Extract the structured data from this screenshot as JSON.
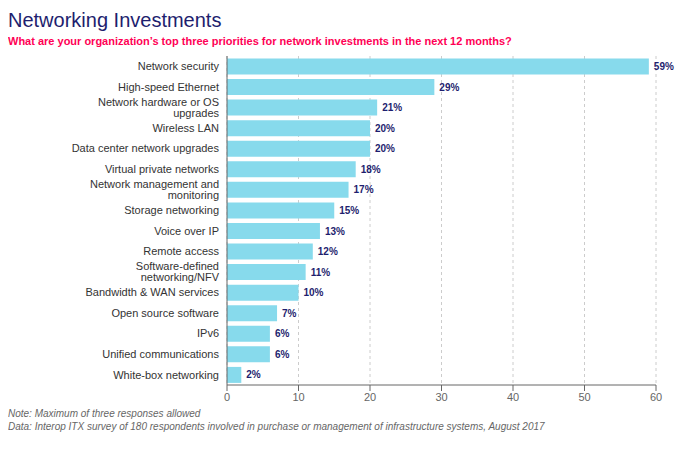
{
  "chart_data": {
    "type": "bar",
    "orientation": "horizontal",
    "title": "Networking Investments",
    "subtitle": "What are your organization’s top three priorities for network investments in the next 12 months?",
    "annotations": [
      "Note: Maximum of three responses allowed",
      "Data: Interop ITX survey of 180 respondents involved in purchase or management of infrastructure systems, August 2017"
    ],
    "categories": [
      "Network security",
      "High-speed Ethernet",
      "Network hardware or OS upgrades",
      "Wireless LAN",
      "Data center network upgrades",
      "Virtual private networks",
      "Network management and monitoring",
      "Storage networking",
      "Voice over IP",
      "Remote access",
      "Software-defined networking/NFV",
      "Bandwidth & WAN services",
      "Open source software",
      "IPv6",
      "Unified communications",
      "White-box networking"
    ],
    "values": [
      59,
      29,
      21,
      20,
      20,
      18,
      17,
      15,
      13,
      12,
      11,
      10,
      7,
      6,
      6,
      2
    ],
    "value_labels": [
      "59%",
      "29%",
      "21%",
      "20%",
      "20%",
      "18%",
      "17%",
      "15%",
      "13%",
      "12%",
      "11%",
      "10%",
      "7%",
      "6%",
      "6%",
      "2%"
    ],
    "data_labels": true,
    "color": "#87DAEC",
    "xlim": [
      0,
      60
    ],
    "xticks": [
      0,
      10,
      20,
      30,
      40,
      50,
      60
    ],
    "grid": true
  }
}
